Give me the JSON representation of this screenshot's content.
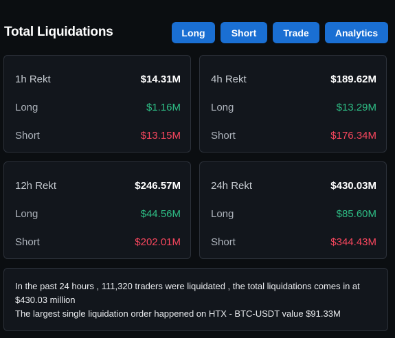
{
  "header": {
    "title": "Total Liquidations",
    "buttons": {
      "long": "Long",
      "short": "Short",
      "trade": "Trade",
      "analytics": "Analytics"
    }
  },
  "cards": [
    {
      "period": "1h Rekt",
      "total": "$14.31M",
      "long_label": "Long",
      "long": "$1.16M",
      "short_label": "Short",
      "short": "$13.15M"
    },
    {
      "period": "4h Rekt",
      "total": "$189.62M",
      "long_label": "Long",
      "long": "$13.29M",
      "short_label": "Short",
      "short": "$176.34M"
    },
    {
      "period": "12h Rekt",
      "total": "$246.57M",
      "long_label": "Long",
      "long": "$44.56M",
      "short_label": "Short",
      "short": "$202.01M"
    },
    {
      "period": "24h Rekt",
      "total": "$430.03M",
      "long_label": "Long",
      "long": "$85.60M",
      "short_label": "Short",
      "short": "$344.43M"
    }
  ],
  "summary": {
    "line1": "In the past 24 hours , 111,320 traders were liquidated , the total liquidations comes in at $430.03 million",
    "line2": "The largest single liquidation order happened on HTX - BTC-USDT value $91.33M"
  },
  "colors": {
    "accent": "#1a6fd3",
    "long": "#2ebd85",
    "short": "#f6465d",
    "background": "#0b0e11"
  }
}
